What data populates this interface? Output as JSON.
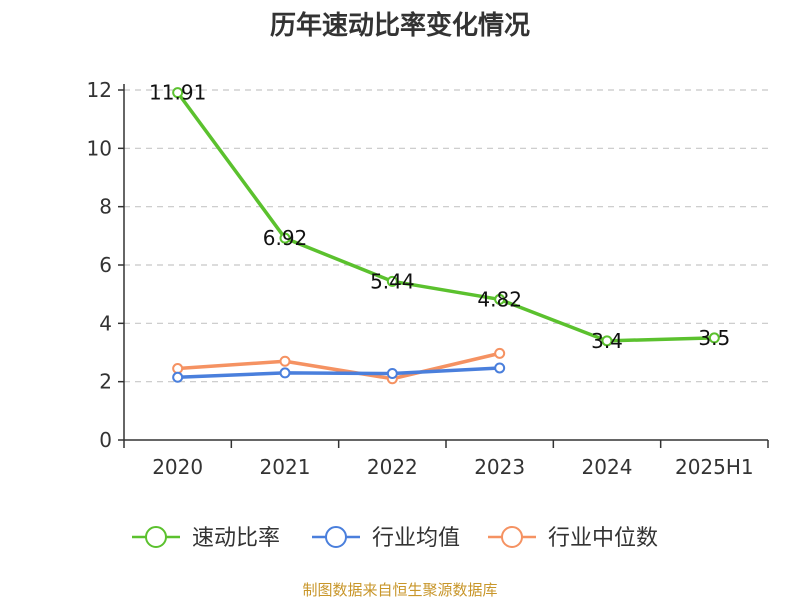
{
  "chart_data": {
    "type": "line",
    "title": "历年速动比率变化情况",
    "categories": [
      "2020",
      "2021",
      "2022",
      "2023",
      "2024",
      "2025H1"
    ],
    "ylim": [
      0,
      12
    ],
    "yticks": [
      0,
      2,
      4,
      6,
      8,
      10,
      12
    ],
    "grid": true,
    "legend_position": "bottom",
    "series": [
      {
        "name": "速动比率",
        "color": "#5bc12e",
        "values": [
          11.91,
          6.92,
          5.44,
          4.82,
          3.4,
          3.5
        ],
        "labels": [
          "11.91",
          "6.92",
          "5.44",
          "4.82",
          "3.4",
          "3.5"
        ]
      },
      {
        "name": "行业均值",
        "color": "#4a7fdc",
        "values": [
          2.15,
          2.3,
          2.28,
          2.47,
          null,
          null
        ]
      },
      {
        "name": "行业中位数",
        "color": "#f59262",
        "values": [
          2.45,
          2.7,
          2.1,
          2.97,
          null,
          null
        ]
      }
    ],
    "source": "制图数据来自恒生聚源数据库"
  }
}
